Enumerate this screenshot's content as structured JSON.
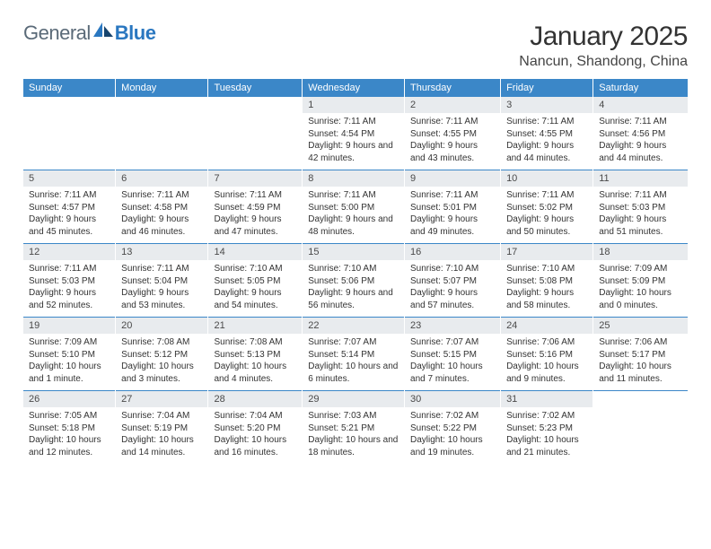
{
  "logo": {
    "text1": "General",
    "text2": "Blue"
  },
  "title": "January 2025",
  "location": "Nancun, Shandong, China",
  "colors": {
    "header_bg": "#3b87c8",
    "header_fg": "#ffffff",
    "daynum_bg": "#e8ebee",
    "text": "#333333",
    "logo_gray": "#5a6a78",
    "logo_blue": "#2a77c0",
    "rule": "#3b87c8"
  },
  "daynames": [
    "Sunday",
    "Monday",
    "Tuesday",
    "Wednesday",
    "Thursday",
    "Friday",
    "Saturday"
  ],
  "weeks": [
    [
      null,
      null,
      null,
      {
        "n": "1",
        "sr": "7:11 AM",
        "ss": "4:54 PM",
        "dl": "9 hours and 42 minutes."
      },
      {
        "n": "2",
        "sr": "7:11 AM",
        "ss": "4:55 PM",
        "dl": "9 hours and 43 minutes."
      },
      {
        "n": "3",
        "sr": "7:11 AM",
        "ss": "4:55 PM",
        "dl": "9 hours and 44 minutes."
      },
      {
        "n": "4",
        "sr": "7:11 AM",
        "ss": "4:56 PM",
        "dl": "9 hours and 44 minutes."
      }
    ],
    [
      {
        "n": "5",
        "sr": "7:11 AM",
        "ss": "4:57 PM",
        "dl": "9 hours and 45 minutes."
      },
      {
        "n": "6",
        "sr": "7:11 AM",
        "ss": "4:58 PM",
        "dl": "9 hours and 46 minutes."
      },
      {
        "n": "7",
        "sr": "7:11 AM",
        "ss": "4:59 PM",
        "dl": "9 hours and 47 minutes."
      },
      {
        "n": "8",
        "sr": "7:11 AM",
        "ss": "5:00 PM",
        "dl": "9 hours and 48 minutes."
      },
      {
        "n": "9",
        "sr": "7:11 AM",
        "ss": "5:01 PM",
        "dl": "9 hours and 49 minutes."
      },
      {
        "n": "10",
        "sr": "7:11 AM",
        "ss": "5:02 PM",
        "dl": "9 hours and 50 minutes."
      },
      {
        "n": "11",
        "sr": "7:11 AM",
        "ss": "5:03 PM",
        "dl": "9 hours and 51 minutes."
      }
    ],
    [
      {
        "n": "12",
        "sr": "7:11 AM",
        "ss": "5:03 PM",
        "dl": "9 hours and 52 minutes."
      },
      {
        "n": "13",
        "sr": "7:11 AM",
        "ss": "5:04 PM",
        "dl": "9 hours and 53 minutes."
      },
      {
        "n": "14",
        "sr": "7:10 AM",
        "ss": "5:05 PM",
        "dl": "9 hours and 54 minutes."
      },
      {
        "n": "15",
        "sr": "7:10 AM",
        "ss": "5:06 PM",
        "dl": "9 hours and 56 minutes."
      },
      {
        "n": "16",
        "sr": "7:10 AM",
        "ss": "5:07 PM",
        "dl": "9 hours and 57 minutes."
      },
      {
        "n": "17",
        "sr": "7:10 AM",
        "ss": "5:08 PM",
        "dl": "9 hours and 58 minutes."
      },
      {
        "n": "18",
        "sr": "7:09 AM",
        "ss": "5:09 PM",
        "dl": "10 hours and 0 minutes."
      }
    ],
    [
      {
        "n": "19",
        "sr": "7:09 AM",
        "ss": "5:10 PM",
        "dl": "10 hours and 1 minute."
      },
      {
        "n": "20",
        "sr": "7:08 AM",
        "ss": "5:12 PM",
        "dl": "10 hours and 3 minutes."
      },
      {
        "n": "21",
        "sr": "7:08 AM",
        "ss": "5:13 PM",
        "dl": "10 hours and 4 minutes."
      },
      {
        "n": "22",
        "sr": "7:07 AM",
        "ss": "5:14 PM",
        "dl": "10 hours and 6 minutes."
      },
      {
        "n": "23",
        "sr": "7:07 AM",
        "ss": "5:15 PM",
        "dl": "10 hours and 7 minutes."
      },
      {
        "n": "24",
        "sr": "7:06 AM",
        "ss": "5:16 PM",
        "dl": "10 hours and 9 minutes."
      },
      {
        "n": "25",
        "sr": "7:06 AM",
        "ss": "5:17 PM",
        "dl": "10 hours and 11 minutes."
      }
    ],
    [
      {
        "n": "26",
        "sr": "7:05 AM",
        "ss": "5:18 PM",
        "dl": "10 hours and 12 minutes."
      },
      {
        "n": "27",
        "sr": "7:04 AM",
        "ss": "5:19 PM",
        "dl": "10 hours and 14 minutes."
      },
      {
        "n": "28",
        "sr": "7:04 AM",
        "ss": "5:20 PM",
        "dl": "10 hours and 16 minutes."
      },
      {
        "n": "29",
        "sr": "7:03 AM",
        "ss": "5:21 PM",
        "dl": "10 hours and 18 minutes."
      },
      {
        "n": "30",
        "sr": "7:02 AM",
        "ss": "5:22 PM",
        "dl": "10 hours and 19 minutes."
      },
      {
        "n": "31",
        "sr": "7:02 AM",
        "ss": "5:23 PM",
        "dl": "10 hours and 21 minutes."
      },
      null
    ]
  ],
  "labels": {
    "sunrise": "Sunrise:",
    "sunset": "Sunset:",
    "daylight": "Daylight:"
  }
}
